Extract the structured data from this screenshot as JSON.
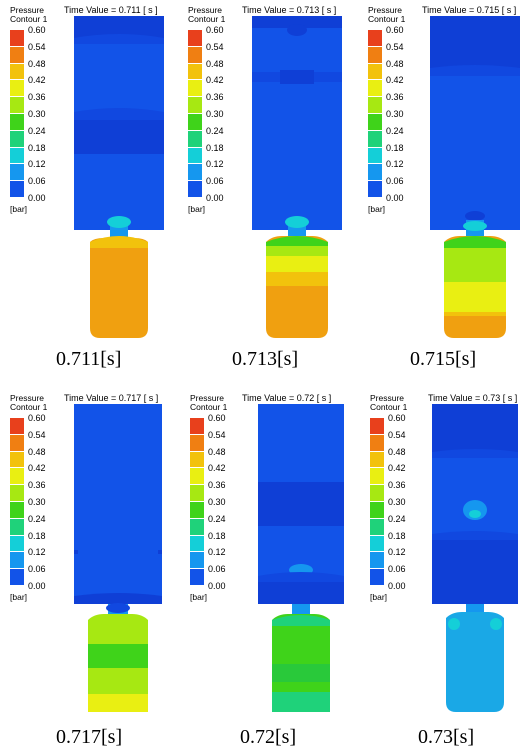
{
  "legend": {
    "title_line1": "Pressure",
    "title_line2": "Contour 1",
    "unit": "[bar]",
    "ticks": [
      "0.60",
      "0.54",
      "0.48",
      "0.42",
      "0.36",
      "0.30",
      "0.24",
      "0.18",
      "0.12",
      "0.06",
      "0.00"
    ],
    "colors": [
      "#e8401c",
      "#f07f12",
      "#f2c20c",
      "#e9ef12",
      "#a7e812",
      "#3fd31a",
      "#1fd27a",
      "#14cfd8",
      "#1597ef",
      "#1253e8"
    ]
  },
  "panels": [
    {
      "time_label": "Time Value = 0.711 [ s ]",
      "caption": "0.711[s]"
    },
    {
      "time_label": "Time Value = 0.713 [ s ]",
      "caption": "0.713[s]"
    },
    {
      "time_label": "Time Value = 0.715 [ s ]",
      "caption": "0.715[s]"
    },
    {
      "time_label": "Time Value = 0.717 [ s ]",
      "caption": "0.717[s]"
    },
    {
      "time_label": "Time Value = 0.72 [ s ]",
      "caption": "0.72[s]"
    },
    {
      "time_label": "Time Value = 0.73 [ s ]",
      "caption": "0.73[s]"
    }
  ]
}
